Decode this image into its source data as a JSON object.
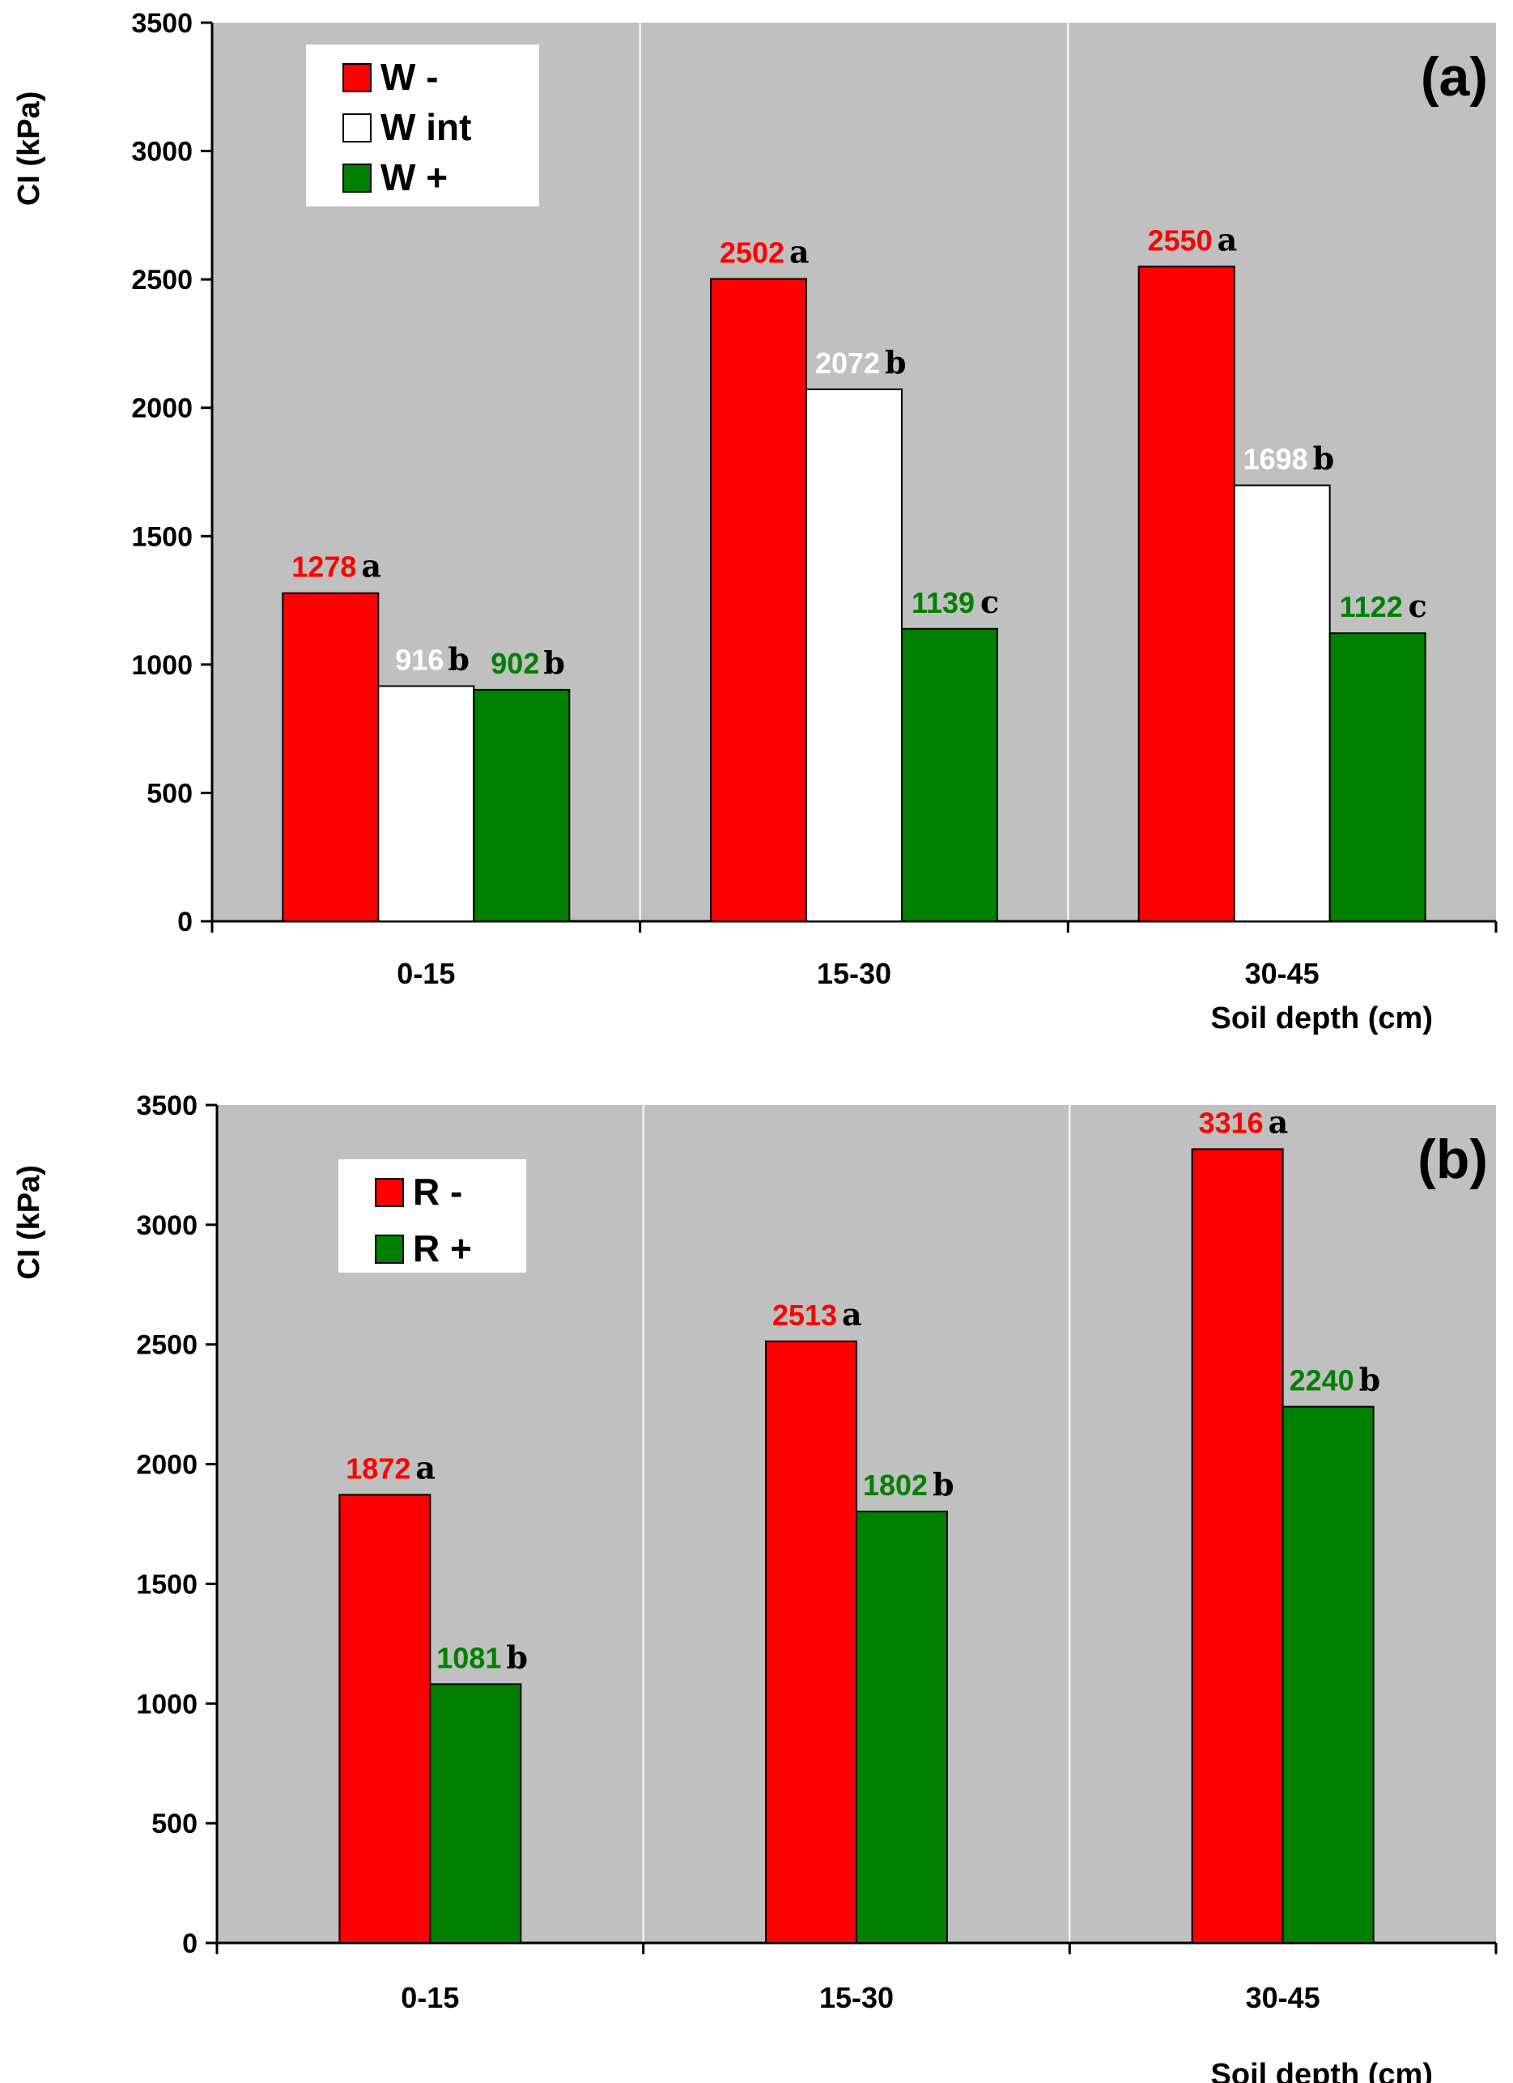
{
  "colors": {
    "plot_background": "#c0c0c0",
    "W -": "#ff0000",
    "W int": "#ffffff",
    "W +": "#008000",
    "R -": "#ff0000",
    "R +": "#008000",
    "label_W -": "#ff0000",
    "label_W int": "#ffffff",
    "label_W +": "#008000",
    "label_R -": "#ff0000",
    "label_R +": "#008000"
  },
  "chart_data": [
    {
      "type": "bar",
      "panel": "(a)",
      "ylabel": "CI (kPa)",
      "xlabel": "Soil depth (cm)",
      "ylim": [
        0,
        3500
      ],
      "yticks": [
        0,
        500,
        1000,
        1500,
        2000,
        2500,
        3000,
        3500
      ],
      "grid": "vertical separators between categories",
      "legend_position": "top-left",
      "categories": [
        "0-15",
        "15-30",
        "30-45"
      ],
      "series": [
        {
          "name": "W -",
          "values": [
            1278,
            2502,
            2550
          ],
          "letters": [
            "a",
            "a",
            "a"
          ]
        },
        {
          "name": "W int",
          "values": [
            916,
            2072,
            1698
          ],
          "letters": [
            "b",
            "b",
            "b"
          ]
        },
        {
          "name": "W +",
          "values": [
            902,
            1139,
            1122
          ],
          "letters": [
            "b",
            "c",
            "c"
          ]
        }
      ]
    },
    {
      "type": "bar",
      "panel": "(b)",
      "ylabel": "CI (kPa)",
      "xlabel": "Soil depth (cm)",
      "ylim": [
        0,
        3500
      ],
      "yticks": [
        0,
        500,
        1000,
        1500,
        2000,
        2500,
        3000,
        3500
      ],
      "grid": "vertical separators between categories",
      "legend_position": "top-left",
      "categories": [
        "0-15",
        "15-30",
        "30-45"
      ],
      "series": [
        {
          "name": "R -",
          "values": [
            1872,
            2513,
            3316
          ],
          "letters": [
            "a",
            "a",
            "a"
          ]
        },
        {
          "name": "R +",
          "values": [
            1081,
            1802,
            2240
          ],
          "letters": [
            "b",
            "b",
            "b"
          ]
        }
      ]
    }
  ]
}
